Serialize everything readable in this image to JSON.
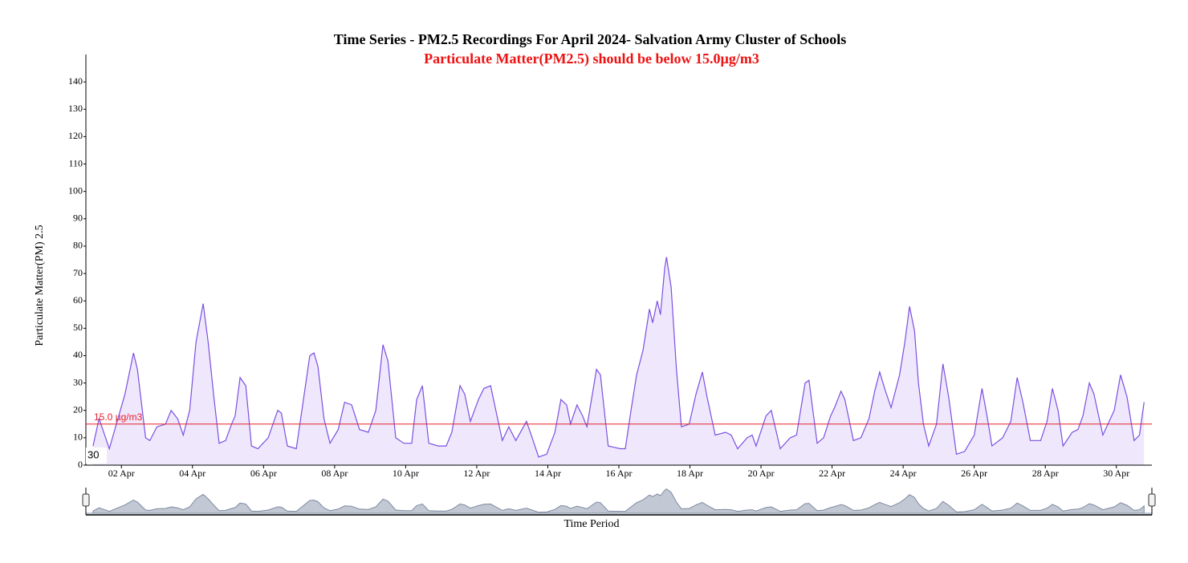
{
  "chart_data": {
    "type": "area",
    "title": "Time Series - PM2.5 Recordings For April 2024- Salvation Army Cluster of Schools",
    "subtitle": "Particulate Matter(PM2.5) should be below 15.0µg/m3",
    "y_label": "Particulate Matter(PM) 2.5",
    "x_label": "Time Period",
    "range_label": "30",
    "color": "#7b4fe0",
    "fill": "#efe8fd",
    "grid": false,
    "xlim": [
      1,
      31
    ],
    "ylim": [
      0,
      150
    ],
    "yticks": [
      0,
      10,
      20,
      30,
      40,
      50,
      60,
      70,
      80,
      90,
      100,
      110,
      120,
      130,
      140
    ],
    "xticks": [
      {
        "value": 2,
        "label": "02 Apr"
      },
      {
        "value": 4,
        "label": "04 Apr"
      },
      {
        "value": 6,
        "label": "06 Apr"
      },
      {
        "value": 8,
        "label": "08 Apr"
      },
      {
        "value": 10,
        "label": "10 Apr"
      },
      {
        "value": 12,
        "label": "12 Apr"
      },
      {
        "value": 14,
        "label": "14 Apr"
      },
      {
        "value": 16,
        "label": "16 Apr"
      },
      {
        "value": 18,
        "label": "18 Apr"
      },
      {
        "value": 20,
        "label": "20 Apr"
      },
      {
        "value": 22,
        "label": "22 Apr"
      },
      {
        "value": 24,
        "label": "24 Apr"
      },
      {
        "value": 26,
        "label": "26 Apr"
      },
      {
        "value": 28,
        "label": "28 Apr"
      },
      {
        "value": 30,
        "label": "30 Apr"
      }
    ],
    "threshold": {
      "value": 15,
      "label": "15.0 µg/m3",
      "color": "#e8202a"
    },
    "x": [
      1.2,
      1.37,
      1.66,
      2.1,
      2.34,
      2.45,
      2.68,
      2.8,
      3.0,
      3.24,
      3.4,
      3.58,
      3.74,
      3.92,
      4.1,
      4.3,
      4.44,
      4.6,
      4.75,
      4.93,
      5.1,
      5.2,
      5.34,
      5.5,
      5.66,
      5.84,
      6.13,
      6.4,
      6.5,
      6.67,
      6.92,
      7.08,
      7.3,
      7.42,
      7.53,
      7.7,
      7.87,
      8.1,
      8.28,
      8.48,
      8.7,
      8.95,
      9.16,
      9.36,
      9.5,
      9.72,
      9.95,
      10.17,
      10.31,
      10.47,
      10.65,
      10.92,
      11.14,
      11.3,
      11.53,
      11.66,
      11.82,
      12.05,
      12.2,
      12.39,
      12.57,
      12.72,
      12.9,
      13.1,
      13.4,
      13.56,
      13.74,
      13.97,
      14.2,
      14.37,
      14.53,
      14.64,
      14.82,
      14.98,
      15.1,
      15.37,
      15.48,
      15.7,
      16.04,
      16.18,
      16.34,
      16.5,
      16.68,
      16.86,
      16.95,
      17.08,
      17.17,
      17.29,
      17.34,
      17.47,
      17.62,
      17.76,
      17.98,
      18.17,
      18.35,
      18.48,
      18.71,
      19.0,
      19.16,
      19.34,
      19.61,
      19.75,
      19.86,
      20.14,
      20.29,
      20.54,
      20.82,
      21.0,
      21.24,
      21.35,
      21.58,
      21.76,
      21.96,
      22.07,
      22.25,
      22.36,
      22.6,
      22.81,
      23.04,
      23.2,
      23.34,
      23.48,
      23.66,
      23.9,
      24.05,
      24.18,
      24.32,
      24.43,
      24.57,
      24.72,
      24.94,
      25.12,
      25.28,
      25.5,
      25.73,
      26.0,
      26.22,
      26.36,
      26.5,
      26.8,
      27.03,
      27.21,
      27.37,
      27.58,
      27.87,
      28.05,
      28.2,
      28.36,
      28.5,
      28.76,
      28.92,
      29.06,
      29.24,
      29.37,
      29.62,
      29.94,
      30.12,
      30.3,
      30.5,
      30.65,
      30.78
    ],
    "values": [
      7,
      17,
      6,
      26,
      41,
      35,
      10,
      9,
      14,
      15,
      20,
      17,
      11,
      20,
      45,
      59,
      45,
      25,
      8,
      9,
      15,
      18,
      32,
      29,
      7,
      6,
      10,
      20,
      19,
      7,
      6,
      20,
      40,
      41,
      36,
      17,
      8,
      13,
      23,
      22,
      13,
      12,
      20,
      44,
      38,
      10,
      8,
      8,
      24,
      29,
      8,
      7,
      7,
      12,
      29,
      26,
      16,
      24,
      28,
      29,
      18,
      9,
      14,
      9,
      16,
      10,
      3,
      4,
      12,
      24,
      22,
      15,
      22,
      18,
      14,
      35,
      33,
      7,
      6,
      6,
      20,
      33,
      42,
      57,
      52,
      60,
      55,
      72,
      76,
      65,
      35,
      14,
      15,
      26,
      34,
      25,
      11,
      12,
      11,
      6,
      10,
      11,
      7,
      18,
      20,
      6,
      10,
      11,
      30,
      31,
      8,
      10,
      18,
      21,
      27,
      24,
      9,
      10,
      17,
      27,
      34,
      28,
      21,
      33,
      45,
      58,
      49,
      30,
      15,
      7,
      15,
      37,
      25,
      4,
      5,
      11,
      28,
      18,
      7,
      10,
      16,
      32,
      23,
      9,
      9,
      16,
      28,
      20,
      7,
      12,
      13,
      18,
      30,
      26,
      11,
      20,
      33,
      25,
      9,
      11,
      23
    ]
  }
}
